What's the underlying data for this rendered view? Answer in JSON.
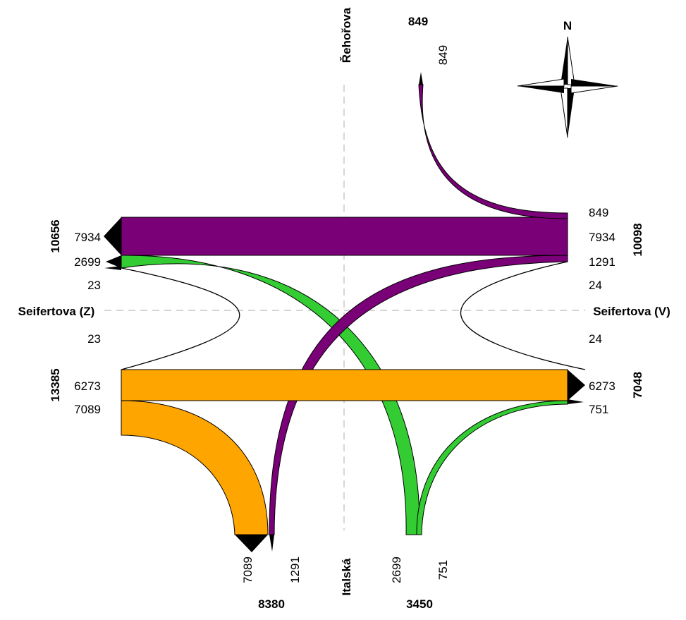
{
  "streets": {
    "north": "Řehořova",
    "south": "Italská",
    "west": "Seifertova (Z)",
    "east": "Seifertova (V)"
  },
  "compass_label": "N",
  "totals": {
    "north_top": "849",
    "west_upper": "10656",
    "west_lower": "13385",
    "east_upper": "10098",
    "east_lower": "7048",
    "south_left": "8380",
    "south_right": "3450"
  },
  "flow_labels": {
    "north_849": "849",
    "west_7934": "7934",
    "west_2699": "2699",
    "west_23_upper": "23",
    "west_23_lower": "23",
    "west_6273": "6273",
    "west_7089": "7089",
    "east_849": "849",
    "east_7934": "7934",
    "east_1291": "1291",
    "east_24_upper": "24",
    "east_24_lower": "24",
    "east_6273": "6273",
    "east_751": "751",
    "south_7089": "7089",
    "south_1291": "1291",
    "south_2699": "2699",
    "south_751": "751"
  },
  "colors": {
    "purple": "#7a0078",
    "green": "#33cc33",
    "orange": "#ffa500",
    "black": "#000000"
  },
  "chart_data": {
    "type": "flow",
    "flows": [
      {
        "from": "Seifertova (V)",
        "to": "Seifertova (Z)",
        "value": 7934,
        "color": "purple"
      },
      {
        "from": "Seifertova (V)",
        "to": "Řehořova",
        "value": 849,
        "color": "purple"
      },
      {
        "from": "Seifertova (V)",
        "to": "Italská",
        "value": 1291,
        "color": "purple"
      },
      {
        "from": "Seifertova (V)",
        "to": "Seifertova (V)",
        "value": 24,
        "color": "black"
      },
      {
        "from": "Seifertova (Z)",
        "to": "Seifertova (V)",
        "value": 6273,
        "color": "orange"
      },
      {
        "from": "Seifertova (Z)",
        "to": "Italská",
        "value": 7089,
        "color": "orange"
      },
      {
        "from": "Seifertova (Z)",
        "to": "Seifertova (Z)",
        "value": 23,
        "color": "black"
      },
      {
        "from": "Italská",
        "to": "Seifertova (Z)",
        "value": 2699,
        "color": "green"
      },
      {
        "from": "Italská",
        "to": "Seifertova (V)",
        "value": 751,
        "color": "green"
      }
    ]
  }
}
